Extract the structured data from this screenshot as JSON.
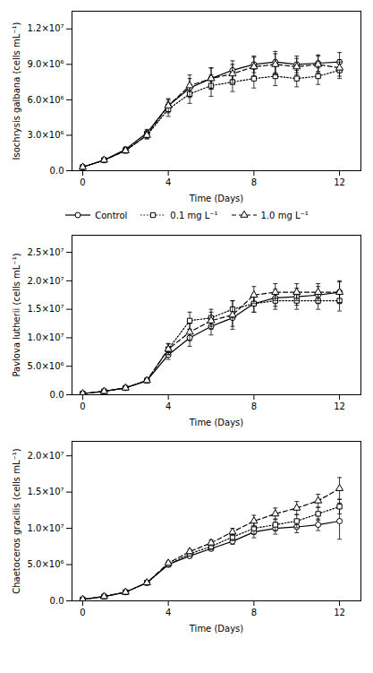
{
  "chart_data": [
    {
      "type": "line",
      "xlabel": "Time (Days)",
      "ylabel": "Isochrysis galbana (cells mL⁻¹)",
      "xlim": [
        -0.5,
        13
      ],
      "xticks": [
        0,
        4,
        8,
        12
      ],
      "ylim": [
        0,
        13500000.0
      ],
      "yticks": [
        {
          "value": 0,
          "label": "0.0"
        },
        {
          "value": 3000000.0,
          "label": "3.0×10⁶"
        },
        {
          "value": 6000000.0,
          "label": "6.0×10⁶"
        },
        {
          "value": 9000000.0,
          "label": "9.0×10⁶"
        },
        {
          "value": 12000000.0,
          "label": "1.2×10⁷"
        }
      ],
      "grid": false,
      "x": [
        0,
        1,
        2,
        3,
        4,
        5,
        6,
        7,
        8,
        9,
        10,
        11,
        12
      ],
      "series": [
        {
          "name": "Control",
          "color": "black",
          "marker": "circle",
          "line_style": "solid",
          "values": [
            300000.0,
            900000.0,
            1800000.0,
            3200000.0,
            5500000.0,
            7000000.0,
            7800000.0,
            8500000.0,
            9000000.0,
            9200000.0,
            9000000.0,
            9100000.0,
            9200000.0
          ],
          "errors": [
            100000.0,
            150000.0,
            200000.0,
            300000.0,
            500000.0,
            800000.0,
            900000.0,
            800000.0,
            700000.0,
            900000.0,
            700000.0,
            700000.0,
            800000.0
          ]
        },
        {
          "name": "0.1 mg L⁻¹",
          "color": "black",
          "marker": "square",
          "line_style": "dotted",
          "values": [
            300000.0,
            900000.0,
            1700000.0,
            3000000.0,
            5200000.0,
            6500000.0,
            7200000.0,
            7500000.0,
            7800000.0,
            8000000.0,
            7800000.0,
            8000000.0,
            8500000.0
          ],
          "errors": [
            100000.0,
            150000.0,
            200000.0,
            300000.0,
            600000.0,
            800000.0,
            900000.0,
            800000.0,
            800000.0,
            800000.0,
            700000.0,
            700000.0,
            700000.0
          ]
        },
        {
          "name": "1.0 mg L⁻¹",
          "color": "black",
          "marker": "triangle",
          "line_style": "dashed",
          "values": [
            300000.0,
            900000.0,
            1700000.0,
            3000000.0,
            5500000.0,
            7200000.0,
            7800000.0,
            8200000.0,
            8800000.0,
            9000000.0,
            8800000.0,
            9000000.0,
            8700000.0
          ],
          "errors": [
            100000.0,
            150000.0,
            200000.0,
            300000.0,
            600000.0,
            900000.0,
            900000.0,
            800000.0,
            800000.0,
            900000.0,
            700000.0,
            700000.0,
            700000.0
          ]
        }
      ]
    },
    {
      "type": "line",
      "xlabel": "Time (Days)",
      "ylabel": "Pavlova lutherii (cells mL⁻¹)",
      "xlim": [
        -0.5,
        13
      ],
      "xticks": [
        0,
        4,
        8,
        12
      ],
      "ylim": [
        0,
        28000000.0
      ],
      "yticks": [
        {
          "value": 0,
          "label": "0.0"
        },
        {
          "value": 5000000.0,
          "label": "5.0×10⁶"
        },
        {
          "value": 10000000.0,
          "label": "1.0×10⁷"
        },
        {
          "value": 15000000.0,
          "label": "1.5×10⁷"
        },
        {
          "value": 20000000.0,
          "label": "2.0×10⁷"
        },
        {
          "value": 25000000.0,
          "label": "2.5×10⁷"
        }
      ],
      "grid": false,
      "legend": "top",
      "x": [
        0,
        1,
        2,
        3,
        4,
        5,
        6,
        7,
        8,
        9,
        10,
        11,
        12
      ],
      "series": [
        {
          "name": "Control",
          "color": "black",
          "marker": "circle",
          "line_style": "solid",
          "values": [
            200000.0,
            600000.0,
            1200000.0,
            2500000.0,
            7000000.0,
            10000000.0,
            12000000.0,
            13500000.0,
            16000000.0,
            17000000.0,
            17200000.0,
            17500000.0,
            18000000.0
          ],
          "errors": [
            100000.0,
            100000.0,
            200000.0,
            300000.0,
            800000.0,
            1500000.0,
            1500000.0,
            1500000.0,
            1500000.0,
            1500000.0,
            1500000.0,
            1500000.0,
            2000000.0
          ]
        },
        {
          "name": "0.1 mg L⁻¹",
          "color": "black",
          "marker": "square",
          "line_style": "dotted",
          "values": [
            200000.0,
            600000.0,
            1200000.0,
            2500000.0,
            8000000.0,
            13000000.0,
            13500000.0,
            15000000.0,
            16000000.0,
            16500000.0,
            16500000.0,
            16500000.0,
            16500000.0
          ],
          "errors": [
            100000.0,
            100000.0,
            200000.0,
            300000.0,
            1000000.0,
            1500000.0,
            1500000.0,
            1500000.0,
            1500000.0,
            1500000.0,
            1500000.0,
            1500000.0,
            1800000.0
          ]
        },
        {
          "name": "1.0 mg L⁻¹",
          "color": "black",
          "marker": "triangle",
          "line_style": "dashed",
          "values": [
            200000.0,
            600000.0,
            1200000.0,
            2500000.0,
            8000000.0,
            11000000.0,
            13000000.0,
            14000000.0,
            17500000.0,
            18000000.0,
            18000000.0,
            18000000.0,
            18000000.0
          ],
          "errors": [
            100000.0,
            100000.0,
            200000.0,
            300000.0,
            900000.0,
            1500000.0,
            1500000.0,
            2500000.0,
            1500000.0,
            1500000.0,
            1500000.0,
            1500000.0,
            1800000.0
          ]
        }
      ]
    },
    {
      "type": "line",
      "xlabel": "Time (Days)",
      "ylabel": "Chaetoceros gracilis (cells mL⁻¹)",
      "xlim": [
        -0.5,
        13
      ],
      "xticks": [
        0,
        4,
        8,
        12
      ],
      "ylim": [
        0,
        22000000.0
      ],
      "yticks": [
        {
          "value": 0,
          "label": "0.0"
        },
        {
          "value": 5000000.0,
          "label": "5.0×10⁶"
        },
        {
          "value": 10000000.0,
          "label": "1.0×10⁷"
        },
        {
          "value": 15000000.0,
          "label": "1.5×10⁷"
        },
        {
          "value": 20000000.0,
          "label": "2.0×10⁷"
        }
      ],
      "grid": false,
      "x": [
        0,
        1,
        2,
        3,
        4,
        5,
        6,
        7,
        8,
        9,
        10,
        11,
        12
      ],
      "series": [
        {
          "name": "Control",
          "color": "black",
          "marker": "circle",
          "line_style": "solid",
          "values": [
            200000.0,
            600000.0,
            1200000.0,
            2500000.0,
            5000000.0,
            6200000.0,
            7200000.0,
            8200000.0,
            9500000.0,
            10000000.0,
            10200000.0,
            10500000.0,
            11000000.0
          ],
          "errors": [
            100000.0,
            100000.0,
            100000.0,
            200000.0,
            300000.0,
            300000.0,
            300000.0,
            400000.0,
            800000.0,
            800000.0,
            800000.0,
            800000.0,
            2500000.0
          ]
        },
        {
          "name": "0.1 mg L⁻¹",
          "color": "black",
          "marker": "square",
          "line_style": "dotted",
          "values": [
            200000.0,
            600000.0,
            1200000.0,
            2500000.0,
            5000000.0,
            6500000.0,
            7500000.0,
            8800000.0,
            10000000.0,
            10500000.0,
            11000000.0,
            12000000.0,
            13000000.0
          ],
          "errors": [
            100000.0,
            100000.0,
            100000.0,
            200000.0,
            300000.0,
            300000.0,
            400000.0,
            500000.0,
            800000.0,
            800000.0,
            900000.0,
            900000.0,
            1000000.0
          ]
        },
        {
          "name": "1.0 mg L⁻¹",
          "color": "black",
          "marker": "triangle",
          "line_style": "dashed",
          "values": [
            200000.0,
            600000.0,
            1200000.0,
            2500000.0,
            5200000.0,
            6800000.0,
            8000000.0,
            9500000.0,
            11000000.0,
            12000000.0,
            12800000.0,
            13800000.0,
            15500000.0
          ],
          "errors": [
            100000.0,
            100000.0,
            100000.0,
            200000.0,
            300000.0,
            300000.0,
            400000.0,
            500000.0,
            800000.0,
            800000.0,
            900000.0,
            900000.0,
            1500000.0
          ]
        }
      ]
    }
  ]
}
